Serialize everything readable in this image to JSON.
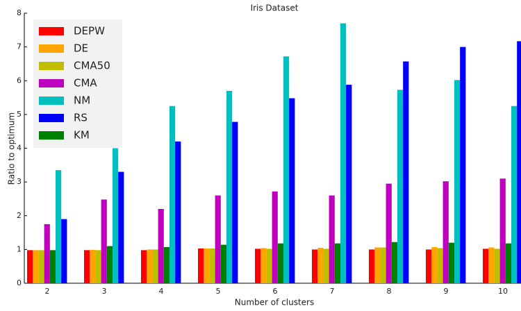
{
  "chart_data": {
    "type": "bar",
    "title": "Iris Dataset",
    "x_label": "Number of clusters",
    "y_label": "Ratio to optimum",
    "categories": [
      "2",
      "3",
      "4",
      "5",
      "6",
      "7",
      "8",
      "9",
      "10"
    ],
    "series": [
      {
        "name": "DEPW",
        "color": "#ff0000",
        "values": [
          0.98,
          0.98,
          0.98,
          1.03,
          1.02,
          1.0,
          1.0,
          1.0,
          1.02
        ]
      },
      {
        "name": "DE",
        "color": "#ffa500",
        "values": [
          0.98,
          0.99,
          1.0,
          1.03,
          1.04,
          1.05,
          1.06,
          1.07,
          1.06
        ]
      },
      {
        "name": "CMA50",
        "color": "#bfbf00",
        "values": [
          0.98,
          0.98,
          1.0,
          1.03,
          1.02,
          1.02,
          1.06,
          1.04,
          1.02
        ]
      },
      {
        "name": "CMA",
        "color": "#bf00bf",
        "values": [
          1.75,
          2.48,
          2.2,
          2.6,
          2.72,
          2.6,
          2.95,
          3.02,
          3.1
        ]
      },
      {
        "name": "NM",
        "color": "#00bfbf",
        "values": [
          3.35,
          4.0,
          5.25,
          5.7,
          6.72,
          7.7,
          5.73,
          6.02,
          5.25
        ]
      },
      {
        "name": "RS",
        "color": "#0000ff",
        "values": [
          1.9,
          3.3,
          4.2,
          4.78,
          5.48,
          5.88,
          6.57,
          7.0,
          7.17
        ]
      },
      {
        "name": "KM",
        "color": "#008000",
        "values": [
          0.98,
          1.1,
          1.07,
          1.14,
          1.18,
          1.18,
          1.22,
          1.2,
          1.18
        ]
      }
    ],
    "ylim": [
      0,
      8
    ],
    "yticks": [
      0,
      1,
      2,
      3,
      4,
      5,
      6,
      7,
      8
    ],
    "grid": false,
    "legend": "upper left"
  }
}
